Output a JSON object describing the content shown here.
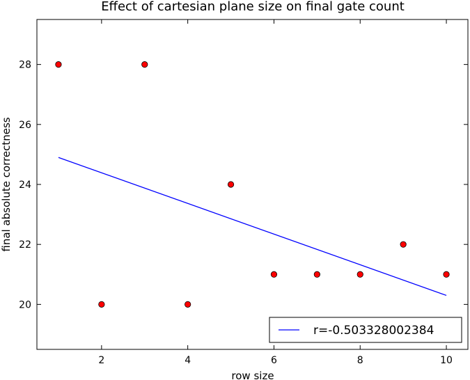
{
  "chart_data": {
    "type": "scatter",
    "title": "Effect of cartesian plane size on final gate count",
    "xlabel": "row size",
    "ylabel": "final absolute correctness",
    "xlim": [
      0.5,
      10.5
    ],
    "ylim": [
      18.5,
      29.5
    ],
    "xticks": [
      2,
      4,
      6,
      8,
      10
    ],
    "yticks": [
      20,
      22,
      24,
      26,
      28
    ],
    "grid": false,
    "legend_position": "lower-right",
    "points": {
      "x": [
        1,
        2,
        3,
        4,
        5,
        6,
        7,
        8,
        9,
        10
      ],
      "y": [
        28,
        20,
        28,
        20,
        24,
        21,
        21,
        21,
        22,
        21
      ],
      "color": "#ff0000",
      "edge_color": "#000000"
    },
    "fit_line": {
      "name": "r=-0.503328002384",
      "x": [
        1,
        10
      ],
      "y": [
        24.9,
        20.3
      ],
      "color": "#0000ff"
    }
  }
}
